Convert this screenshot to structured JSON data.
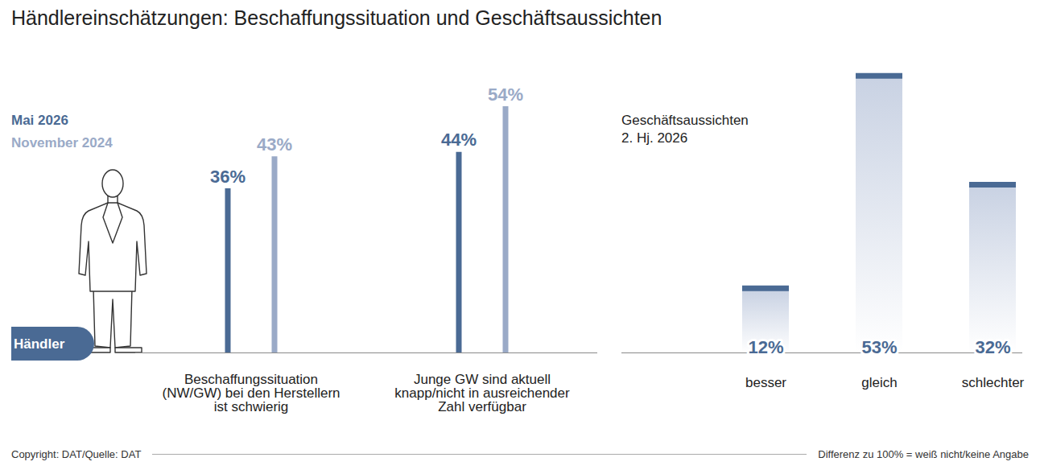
{
  "title": "Händlereinschätzungen: Beschaffungssituation und Geschäftsaussichten",
  "source": "Copyright: DAT/Quelle: DAT",
  "note": "Differenz zu 100% = weiß nicht/keine Angabe",
  "chart_data": [
    {
      "type": "bar",
      "categories": [
        "Beschaffungssituation (NW/GW) bei den Herstellern ist schwierig",
        "Junge GW sind aktuell knapp/nicht in ausreichender Zahl verfügbar"
      ],
      "series": [
        {
          "name": "Mai 2026",
          "color": "#4a6a94",
          "values": [
            36,
            44
          ],
          "value_labels": [
            "36%",
            "44%"
          ]
        },
        {
          "name": "November 2024",
          "color": "#9aaac7",
          "values": [
            43,
            54
          ],
          "value_labels": [
            "43%",
            "54%"
          ]
        }
      ],
      "ylim": [
        0,
        60
      ],
      "yticks": [],
      "tick_labels": "x",
      "data_labels": true,
      "legend": "top-left",
      "annotations": [
        "Händler"
      ]
    },
    {
      "type": "bar",
      "title": "Geschäftsaussichten",
      "subtitle": "2. Hj. 2026",
      "categories": [
        "besser",
        "gleich",
        "schlechter"
      ],
      "values": [
        12,
        53,
        32
      ],
      "value_labels": [
        "12%",
        "53%",
        "32%"
      ],
      "color": "#4a6a94",
      "ylim": [
        0,
        55
      ],
      "yticks": [],
      "tick_labels": "x",
      "data_labels": true
    }
  ]
}
